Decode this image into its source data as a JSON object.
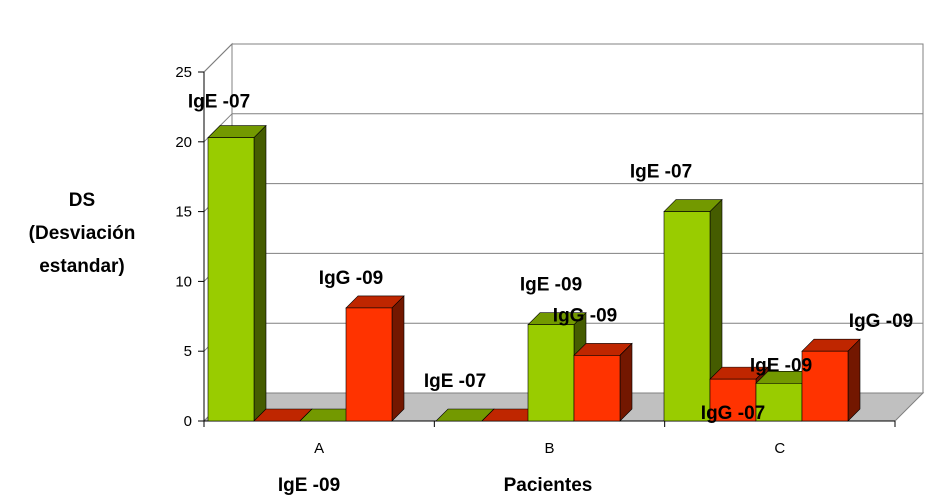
{
  "chart_data": {
    "type": "bar",
    "title": "",
    "xlabel": "Pacientes",
    "ylabel": [
      "DS",
      "(Desviación",
      "estandar)"
    ],
    "ylim": [
      0,
      25
    ],
    "yticks": [
      0,
      5,
      10,
      15,
      20,
      25
    ],
    "grid": true,
    "legend": "none",
    "categories": [
      "A",
      "B",
      "C"
    ],
    "series": [
      {
        "color": "#99cc00",
        "values": [
          20.3,
          0,
          15.0
        ],
        "labels": [
          "IgE -07",
          "IgE -07",
          "IgE -07"
        ]
      },
      {
        "color": "#ff3300",
        "values": [
          0,
          0,
          3.0
        ],
        "labels": [
          "",
          "",
          "IgG -07"
        ]
      },
      {
        "color": "#99cc00",
        "values": [
          0,
          6.9,
          2.7
        ],
        "labels": [
          "IgE -09",
          "IgE -09",
          "IgE -09"
        ]
      },
      {
        "color": "#ff3300",
        "values": [
          8.1,
          4.7,
          5.0
        ],
        "labels": [
          "IgG -09",
          "IgG -09",
          "IgG -09"
        ]
      }
    ]
  }
}
